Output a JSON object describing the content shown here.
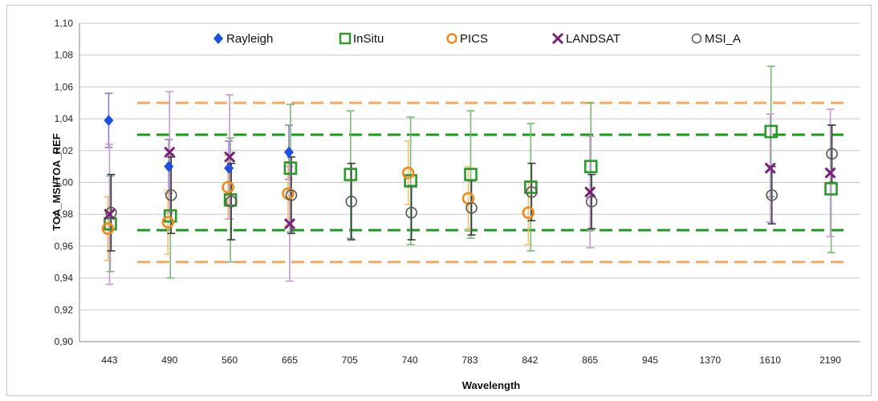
{
  "chart_data": {
    "type": "scatter",
    "xlabel": "Wavelength",
    "ylabel": "TOA_MSI/TOA_REF",
    "categories": [
      "443",
      "490",
      "560",
      "665",
      "705",
      "740",
      "783",
      "842",
      "865",
      "945",
      "1370",
      "1610",
      "2190"
    ],
    "ylim": [
      0.9,
      1.1
    ],
    "yticks": [
      "0,90",
      "0,92",
      "0,94",
      "0,96",
      "0,98",
      "1,00",
      "1,02",
      "1,04",
      "1,06",
      "1,08",
      "1,10"
    ],
    "grid": true,
    "legend_position": "top",
    "series": [
      {
        "name": "Rayleigh",
        "marker": "diamond",
        "color": "#1f4fe0",
        "error_color": "#8f7ad6",
        "points": [
          {
            "x": "443",
            "y": 1.039,
            "err": 0.017
          },
          {
            "x": "490",
            "y": 1.01,
            "err": 0.017
          },
          {
            "x": "560",
            "y": 1.009,
            "err": 0.017
          },
          {
            "x": "665",
            "y": 1.019,
            "err": 0.017
          }
        ]
      },
      {
        "name": "InSitu",
        "marker": "square",
        "color": "#2a9a2a",
        "error_color": "#79b979",
        "points": [
          {
            "x": "443",
            "y": 0.974,
            "err": 0.03
          },
          {
            "x": "490",
            "y": 0.979,
            "err": 0.039
          },
          {
            "x": "560",
            "y": 0.989,
            "err": 0.039
          },
          {
            "x": "665",
            "y": 1.009,
            "err": 0.04
          },
          {
            "x": "705",
            "y": 1.005,
            "err": 0.04
          },
          {
            "x": "740",
            "y": 1.001,
            "err": 0.04
          },
          {
            "x": "783",
            "y": 1.005,
            "err": 0.04
          },
          {
            "x": "842",
            "y": 0.997,
            "err": 0.04
          },
          {
            "x": "865",
            "y": 1.01,
            "err": 0.04
          },
          {
            "x": "1610",
            "y": 1.032,
            "err": 0.041
          },
          {
            "x": "2190",
            "y": 0.996,
            "err": 0.04
          }
        ]
      },
      {
        "name": "PICS",
        "marker": "circle",
        "color": "#f08a1c",
        "error_color": "#f0c070",
        "points": [
          {
            "x": "443",
            "y": 0.971,
            "err": 0.02
          },
          {
            "x": "490",
            "y": 0.975,
            "err": 0.02
          },
          {
            "x": "560",
            "y": 0.997,
            "err": 0.02
          },
          {
            "x": "665",
            "y": 0.993,
            "err": 0.02
          },
          {
            "x": "740",
            "y": 1.006,
            "err": 0.02
          },
          {
            "x": "783",
            "y": 0.99,
            "err": 0.02
          },
          {
            "x": "842",
            "y": 0.981,
            "err": 0.02
          }
        ]
      },
      {
        "name": "LANDSAT",
        "marker": "x",
        "color": "#7a1f7a",
        "error_color": "#c59ad0",
        "points": [
          {
            "x": "443",
            "y": 0.98,
            "err": 0.044
          },
          {
            "x": "490",
            "y": 1.019,
            "err": 0.038
          },
          {
            "x": "560",
            "y": 1.016,
            "err": 0.039
          },
          {
            "x": "665",
            "y": 0.974,
            "err": 0.036
          },
          {
            "x": "865",
            "y": 0.994,
            "err": 0.035
          },
          {
            "x": "1610",
            "y": 1.009,
            "err": 0.034
          },
          {
            "x": "2190",
            "y": 1.006,
            "err": 0.04
          }
        ]
      },
      {
        "name": "MSI_A",
        "marker": "open-circle",
        "color": "#555555",
        "error_color": "#3a3a3a",
        "points": [
          {
            "x": "443",
            "y": 0.981,
            "err": 0.024
          },
          {
            "x": "490",
            "y": 0.992,
            "err": 0.024
          },
          {
            "x": "560",
            "y": 0.988,
            "err": 0.024
          },
          {
            "x": "665",
            "y": 0.992,
            "err": 0.024
          },
          {
            "x": "705",
            "y": 0.988,
            "err": 0.024
          },
          {
            "x": "740",
            "y": 0.981,
            "err": 0.017
          },
          {
            "x": "783",
            "y": 0.984,
            "err": 0.017
          },
          {
            "x": "842",
            "y": 0.994,
            "err": 0.018
          },
          {
            "x": "865",
            "y": 0.988,
            "err": 0.017
          },
          {
            "x": "1610",
            "y": 0.992,
            "err": 0.018
          },
          {
            "x": "2190",
            "y": 1.018,
            "err": 0.018
          }
        ]
      }
    ],
    "reference_lines": [
      {
        "y": 1.05,
        "color": "#f8a860",
        "style": "dashed"
      },
      {
        "y": 0.95,
        "color": "#f8a860",
        "style": "dashed"
      },
      {
        "y": 1.03,
        "color": "#1a9a1a",
        "style": "dashed"
      },
      {
        "y": 0.97,
        "color": "#1a9a1a",
        "style": "dashed"
      }
    ]
  }
}
